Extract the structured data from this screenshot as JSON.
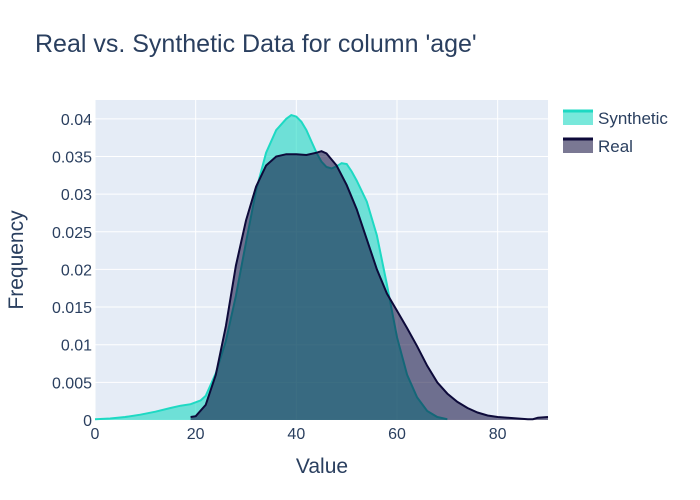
{
  "chart_data": {
    "type": "area",
    "title": "Real vs. Synthetic Data for column 'age'",
    "xlabel": "Value",
    "ylabel": "Frequency",
    "xlim": [
      0,
      90
    ],
    "ylim": [
      0,
      0.0425
    ],
    "grid": true,
    "legend_position": "top-right",
    "x_ticks": [
      "0",
      "20",
      "40",
      "60",
      "80"
    ],
    "x_tick_values": [
      0,
      20,
      40,
      60,
      80
    ],
    "y_ticks": [
      "0",
      "0.005",
      "0.01",
      "0.015",
      "0.02",
      "0.025",
      "0.03",
      "0.035",
      "0.04"
    ],
    "y_tick_values": [
      0,
      0.005,
      0.01,
      0.015,
      0.02,
      0.025,
      0.03,
      0.035,
      0.04
    ],
    "series": [
      {
        "name": "Synthetic",
        "color": "#1ed9c3",
        "x": [
          0,
          3,
          6,
          9,
          12,
          15,
          17,
          19,
          21,
          22,
          24,
          26,
          28,
          30,
          32,
          34,
          36,
          38,
          39,
          40,
          41,
          42,
          43,
          44,
          45,
          46,
          47,
          48,
          49,
          50,
          51,
          52,
          54,
          56,
          58,
          60,
          62,
          64,
          66,
          68,
          70
        ],
        "values": [
          0.0001,
          0.0002,
          0.0004,
          0.0007,
          0.0011,
          0.0016,
          0.0019,
          0.0021,
          0.0026,
          0.0032,
          0.0062,
          0.0105,
          0.0165,
          0.0236,
          0.0305,
          0.0355,
          0.0385,
          0.04,
          0.0405,
          0.0403,
          0.0396,
          0.0385,
          0.037,
          0.0355,
          0.0343,
          0.0336,
          0.0334,
          0.0337,
          0.0341,
          0.034,
          0.033,
          0.0318,
          0.029,
          0.0245,
          0.018,
          0.011,
          0.006,
          0.003,
          0.0012,
          0.0004,
          0.0001
        ]
      },
      {
        "name": "Real",
        "color": "#0d0a3a",
        "x": [
          19,
          20,
          22,
          24,
          26,
          28,
          30,
          32,
          34,
          36,
          38,
          40,
          42,
          44,
          45,
          46,
          48,
          50,
          52,
          54,
          56,
          58,
          60,
          62,
          64,
          66,
          68,
          70,
          72,
          74,
          76,
          78,
          80,
          82,
          84,
          86,
          87,
          88,
          90
        ],
        "values": [
          0.0004,
          0.0005,
          0.002,
          0.006,
          0.0125,
          0.0205,
          0.0265,
          0.031,
          0.0338,
          0.035,
          0.0353,
          0.0353,
          0.0352,
          0.0355,
          0.0357,
          0.0354,
          0.0338,
          0.0312,
          0.028,
          0.024,
          0.02,
          0.0168,
          0.0145,
          0.0122,
          0.0098,
          0.0072,
          0.005,
          0.0035,
          0.0024,
          0.0016,
          0.001,
          0.0006,
          0.0004,
          0.0003,
          0.0002,
          0.0001,
          0.0001,
          0.0003,
          0.0004
        ]
      }
    ]
  }
}
